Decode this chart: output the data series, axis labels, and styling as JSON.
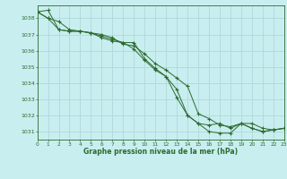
{
  "title": "Graphe pression niveau de la mer (hPa)",
  "background_color": "#c8eef0",
  "grid_color": "#b0d8da",
  "line_color": "#2d6a2d",
  "xlim": [
    0,
    23
  ],
  "ylim": [
    1030.5,
    1038.8
  ],
  "yticks": [
    1031,
    1032,
    1033,
    1034,
    1035,
    1036,
    1037,
    1038
  ],
  "xticks": [
    0,
    1,
    2,
    3,
    4,
    5,
    6,
    7,
    8,
    9,
    10,
    11,
    12,
    13,
    14,
    15,
    16,
    17,
    18,
    19,
    20,
    21,
    22,
    23
  ],
  "series": [
    [
      1038.4,
      1038.0,
      1037.8,
      1037.3,
      1037.2,
      1037.1,
      1036.8,
      1036.6,
      1036.5,
      1036.1,
      1035.4,
      1034.8,
      1034.4,
      1033.1,
      1032.0,
      1031.5,
      1031.0,
      1030.9,
      1030.9,
      1031.5,
      1031.2,
      1031.0,
      1031.1,
      1031.2
    ],
    [
      1038.4,
      1038.5,
      1037.3,
      1037.2,
      1037.2,
      1037.1,
      1036.9,
      1036.7,
      1036.5,
      1036.5,
      1035.5,
      1034.9,
      1034.4,
      1033.6,
      1032.0,
      1031.5,
      1031.4,
      1031.5,
      1031.2,
      1031.5,
      1031.2,
      1031.0,
      1031.1,
      1031.2
    ],
    [
      1038.4,
      1038.0,
      1037.3,
      1037.2,
      1037.2,
      1037.1,
      1037.0,
      1036.8,
      1036.4,
      1036.3,
      1035.8,
      1035.2,
      1034.8,
      1034.3,
      1033.8,
      1032.1,
      1031.8,
      1031.4,
      1031.3,
      1031.5,
      1031.5,
      1031.2,
      1031.1,
      1031.2
    ]
  ]
}
